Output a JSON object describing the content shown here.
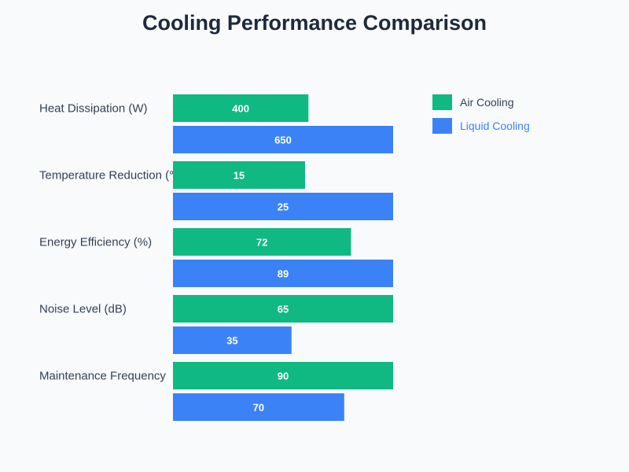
{
  "chart_data": {
    "type": "bar",
    "orientation": "horizontal",
    "title": "Cooling Performance Comparison",
    "categories": [
      "Heat Dissipation (W)",
      "Temperature Reduction (°C)",
      "Energy Efficiency (%)",
      "Noise Level (dB)",
      "Maintenance Frequency"
    ],
    "series": [
      {
        "name": "Air Cooling",
        "color": "#10b981",
        "values": [
          400,
          15,
          72,
          65,
          90
        ]
      },
      {
        "name": "Liquid Cooling",
        "color": "#3b82f6",
        "values": [
          650,
          25,
          89,
          35,
          70
        ]
      }
    ],
    "legend_position": "top-right"
  },
  "legend": {
    "label_colors": [
      "#334155",
      "#3b82f6"
    ]
  }
}
